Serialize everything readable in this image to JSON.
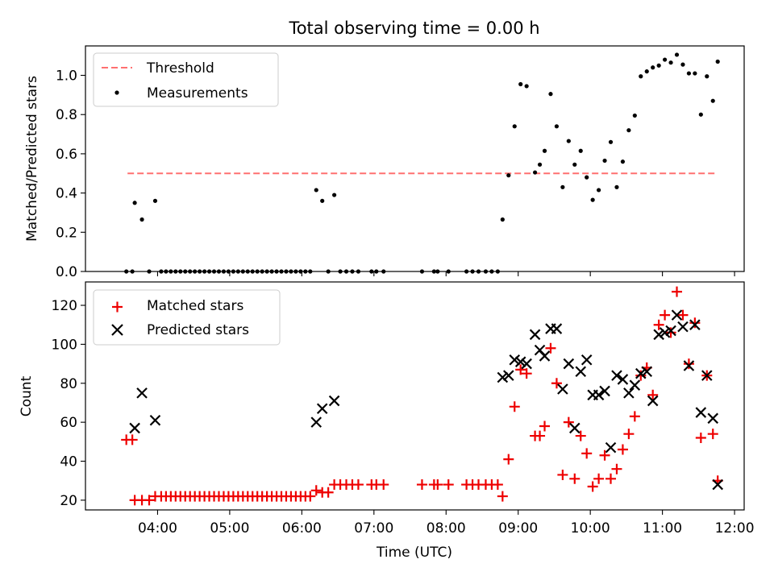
{
  "title": "Total observing time = 0.00 h",
  "colors": {
    "threshold": "#ff7070",
    "measurement": "#000000",
    "matched": "#ee0000",
    "predicted": "#000000"
  },
  "chart_data": [
    {
      "type": "scatter",
      "ylabel": "Matched/Predicted stars",
      "xlim": [
        "03:00",
        "12:08"
      ],
      "ylim": [
        0,
        1.15
      ],
      "yticks": [
        0.0,
        0.2,
        0.4,
        0.6,
        0.8,
        1.0
      ],
      "yticklabels": [
        "0.0",
        "0.2",
        "0.4",
        "0.6",
        "0.8",
        "1.0"
      ],
      "xticks": [
        "04:00",
        "05:00",
        "06:00",
        "07:00",
        "08:00",
        "09:00",
        "10:00",
        "11:00",
        "12:00"
      ],
      "legend": [
        "Threshold",
        "Measurements"
      ],
      "legend_position": "upper left",
      "threshold": {
        "name": "Threshold",
        "y": 0.5,
        "x_start": "03:35",
        "x_end": "11:45"
      },
      "series": [
        {
          "name": "Measurements",
          "points": [
            [
              "03:34",
              0
            ],
            [
              "03:39",
              0
            ],
            [
              "03:41",
              0.35
            ],
            [
              "03:47",
              0.265
            ],
            [
              "03:53",
              0
            ],
            [
              "03:58",
              0.36
            ],
            [
              "04:03",
              0
            ],
            [
              "04:07",
              0
            ],
            [
              "04:11",
              0
            ],
            [
              "04:15",
              0
            ],
            [
              "04:19",
              0
            ],
            [
              "04:23",
              0
            ],
            [
              "04:27",
              0
            ],
            [
              "04:31",
              0
            ],
            [
              "04:35",
              0
            ],
            [
              "04:39",
              0
            ],
            [
              "04:43",
              0
            ],
            [
              "04:47",
              0
            ],
            [
              "04:51",
              0
            ],
            [
              "04:55",
              0
            ],
            [
              "04:59",
              0
            ],
            [
              "05:03",
              0
            ],
            [
              "05:07",
              0
            ],
            [
              "05:11",
              0
            ],
            [
              "05:15",
              0
            ],
            [
              "05:19",
              0
            ],
            [
              "05:23",
              0
            ],
            [
              "05:27",
              0
            ],
            [
              "05:31",
              0
            ],
            [
              "05:35",
              0
            ],
            [
              "05:39",
              0
            ],
            [
              "05:43",
              0
            ],
            [
              "05:47",
              0
            ],
            [
              "05:51",
              0
            ],
            [
              "05:55",
              0
            ],
            [
              "05:59",
              0
            ],
            [
              "06:03",
              0
            ],
            [
              "06:07",
              0
            ],
            [
              "06:12",
              0.415
            ],
            [
              "06:17",
              0.36
            ],
            [
              "06:22",
              0
            ],
            [
              "06:27",
              0.39
            ],
            [
              "06:32",
              0
            ],
            [
              "06:37",
              0
            ],
            [
              "06:42",
              0
            ],
            [
              "06:47",
              0
            ],
            [
              "06:58",
              0
            ],
            [
              "07:02",
              0
            ],
            [
              "07:08",
              0
            ],
            [
              "07:40",
              0
            ],
            [
              "07:50",
              0
            ],
            [
              "07:53",
              0
            ],
            [
              "08:02",
              0
            ],
            [
              "08:17",
              0
            ],
            [
              "08:22",
              0
            ],
            [
              "08:27",
              0
            ],
            [
              "08:33",
              0
            ],
            [
              "08:38",
              0
            ],
            [
              "08:43",
              0
            ],
            [
              "08:47",
              0.265
            ],
            [
              "08:52",
              0.49
            ],
            [
              "08:57",
              0.74
            ],
            [
              "09:02",
              0.955
            ],
            [
              "09:07",
              0.945
            ],
            [
              "09:14",
              0.505
            ],
            [
              "09:18",
              0.545
            ],
            [
              "09:22",
              0.615
            ],
            [
              "09:27",
              0.905
            ],
            [
              "09:32",
              0.74
            ],
            [
              "09:37",
              0.43
            ],
            [
              "09:42",
              0.665
            ],
            [
              "09:47",
              0.545
            ],
            [
              "09:52",
              0.615
            ],
            [
              "09:57",
              0.48
            ],
            [
              "10:02",
              0.365
            ],
            [
              "10:07",
              0.415
            ],
            [
              "10:12",
              0.565
            ],
            [
              "10:17",
              0.66
            ],
            [
              "10:22",
              0.43
            ],
            [
              "10:27",
              0.56
            ],
            [
              "10:32",
              0.72
            ],
            [
              "10:37",
              0.795
            ],
            [
              "10:42",
              0.995
            ],
            [
              "10:47",
              1.02
            ],
            [
              "10:52",
              1.04
            ],
            [
              "10:57",
              1.05
            ],
            [
              "11:02",
              1.08
            ],
            [
              "11:07",
              1.065
            ],
            [
              "11:12",
              1.105
            ],
            [
              "11:17",
              1.055
            ],
            [
              "11:22",
              1.01
            ],
            [
              "11:27",
              1.01
            ],
            [
              "11:32",
              0.8
            ],
            [
              "11:37",
              0.995
            ],
            [
              "11:42",
              0.87
            ],
            [
              "11:46",
              1.07
            ]
          ]
        }
      ]
    },
    {
      "type": "scatter",
      "ylabel": "Count",
      "xlabel": "Time (UTC)",
      "xlim": [
        "03:00",
        "12:08"
      ],
      "ylim": [
        15,
        132
      ],
      "yticks": [
        20,
        40,
        60,
        80,
        100,
        120
      ],
      "yticklabels": [
        "20",
        "40",
        "60",
        "80",
        "100",
        "120"
      ],
      "xticks": [
        "04:00",
        "05:00",
        "06:00",
        "07:00",
        "08:00",
        "09:00",
        "10:00",
        "11:00",
        "12:00"
      ],
      "xticklabels": [
        "04:00",
        "05:00",
        "06:00",
        "07:00",
        "08:00",
        "09:00",
        "10:00",
        "11:00",
        "12:00"
      ],
      "legend": [
        "Matched stars",
        "Predicted stars"
      ],
      "legend_position": "upper left",
      "series": [
        {
          "name": "Matched stars",
          "points": [
            [
              "03:34",
              51
            ],
            [
              "03:39",
              51
            ],
            [
              "03:41",
              20
            ],
            [
              "03:47",
              20
            ],
            [
              "03:53",
              20
            ],
            [
              "03:58",
              22
            ],
            [
              "04:03",
              22
            ],
            [
              "04:07",
              22
            ],
            [
              "04:11",
              22
            ],
            [
              "04:15",
              22
            ],
            [
              "04:19",
              22
            ],
            [
              "04:23",
              22
            ],
            [
              "04:27",
              22
            ],
            [
              "04:31",
              22
            ],
            [
              "04:35",
              22
            ],
            [
              "04:39",
              22
            ],
            [
              "04:43",
              22
            ],
            [
              "04:47",
              22
            ],
            [
              "04:51",
              22
            ],
            [
              "04:55",
              22
            ],
            [
              "04:59",
              22
            ],
            [
              "05:03",
              22
            ],
            [
              "05:07",
              22
            ],
            [
              "05:11",
              22
            ],
            [
              "05:15",
              22
            ],
            [
              "05:19",
              22
            ],
            [
              "05:23",
              22
            ],
            [
              "05:27",
              22
            ],
            [
              "05:31",
              22
            ],
            [
              "05:35",
              22
            ],
            [
              "05:39",
              22
            ],
            [
              "05:43",
              22
            ],
            [
              "05:47",
              22
            ],
            [
              "05:51",
              22
            ],
            [
              "05:55",
              22
            ],
            [
              "05:59",
              22
            ],
            [
              "06:03",
              22
            ],
            [
              "06:07",
              22
            ],
            [
              "06:12",
              25
            ],
            [
              "06:17",
              24
            ],
            [
              "06:22",
              24
            ],
            [
              "06:27",
              28
            ],
            [
              "06:32",
              28
            ],
            [
              "06:37",
              28
            ],
            [
              "06:42",
              28
            ],
            [
              "06:47",
              28
            ],
            [
              "06:58",
              28
            ],
            [
              "07:02",
              28
            ],
            [
              "07:08",
              28
            ],
            [
              "07:40",
              28
            ],
            [
              "07:50",
              28
            ],
            [
              "07:53",
              28
            ],
            [
              "08:02",
              28
            ],
            [
              "08:17",
              28
            ],
            [
              "08:22",
              28
            ],
            [
              "08:27",
              28
            ],
            [
              "08:33",
              28
            ],
            [
              "08:38",
              28
            ],
            [
              "08:43",
              28
            ],
            [
              "08:47",
              22
            ],
            [
              "08:52",
              41
            ],
            [
              "08:57",
              68
            ],
            [
              "09:02",
              87
            ],
            [
              "09:07",
              85
            ],
            [
              "09:14",
              53
            ],
            [
              "09:18",
              53
            ],
            [
              "09:22",
              58
            ],
            [
              "09:27",
              98
            ],
            [
              "09:32",
              80
            ],
            [
              "09:37",
              33
            ],
            [
              "09:42",
              60
            ],
            [
              "09:47",
              31
            ],
            [
              "09:52",
              53
            ],
            [
              "09:57",
              44
            ],
            [
              "10:02",
              27
            ],
            [
              "10:07",
              31
            ],
            [
              "10:12",
              43
            ],
            [
              "10:17",
              31
            ],
            [
              "10:22",
              36
            ],
            [
              "10:27",
              46
            ],
            [
              "10:32",
              54
            ],
            [
              "10:37",
              63
            ],
            [
              "10:42",
              84
            ],
            [
              "10:47",
              88
            ],
            [
              "10:52",
              74
            ],
            [
              "10:57",
              110
            ],
            [
              "11:02",
              115
            ],
            [
              "11:07",
              106
            ],
            [
              "11:12",
              127
            ],
            [
              "11:17",
              115
            ],
            [
              "11:22",
              90
            ],
            [
              "11:27",
              111
            ],
            [
              "11:32",
              52
            ],
            [
              "11:37",
              84
            ],
            [
              "11:42",
              54
            ],
            [
              "11:46",
              30
            ]
          ]
        },
        {
          "name": "Predicted stars",
          "points": [
            [
              "03:41",
              57
            ],
            [
              "03:47",
              75
            ],
            [
              "03:58",
              61
            ],
            [
              "06:12",
              60
            ],
            [
              "06:17",
              67
            ],
            [
              "06:27",
              71
            ],
            [
              "08:47",
              83
            ],
            [
              "08:52",
              84
            ],
            [
              "08:57",
              92
            ],
            [
              "09:02",
              91
            ],
            [
              "09:07",
              90
            ],
            [
              "09:14",
              105
            ],
            [
              "09:18",
              97
            ],
            [
              "09:22",
              94
            ],
            [
              "09:27",
              108
            ],
            [
              "09:32",
              108
            ],
            [
              "09:37",
              77
            ],
            [
              "09:42",
              90
            ],
            [
              "09:47",
              57
            ],
            [
              "09:52",
              86
            ],
            [
              "09:57",
              92
            ],
            [
              "10:02",
              74
            ],
            [
              "10:07",
              74
            ],
            [
              "10:12",
              76
            ],
            [
              "10:17",
              47
            ],
            [
              "10:22",
              84
            ],
            [
              "10:27",
              82
            ],
            [
              "10:32",
              75
            ],
            [
              "10:37",
              79
            ],
            [
              "10:42",
              85
            ],
            [
              "10:47",
              86
            ],
            [
              "10:52",
              71
            ],
            [
              "10:57",
              105
            ],
            [
              "11:02",
              106
            ],
            [
              "11:07",
              107
            ],
            [
              "11:12",
              115
            ],
            [
              "11:17",
              109
            ],
            [
              "11:22",
              89
            ],
            [
              "11:27",
              110
            ],
            [
              "11:32",
              65
            ],
            [
              "11:37",
              84
            ],
            [
              "11:42",
              62
            ],
            [
              "11:46",
              28
            ]
          ]
        }
      ]
    }
  ]
}
